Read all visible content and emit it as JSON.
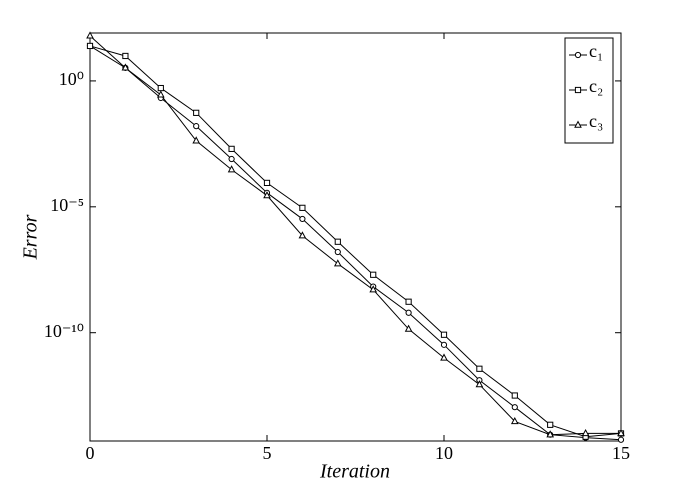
{
  "chart_data": {
    "type": "line",
    "x_label": "Iteration",
    "y_label": "Error",
    "log_y": true,
    "x": [
      0,
      1,
      2,
      3,
      4,
      5,
      6,
      7,
      8,
      9,
      10,
      11,
      12,
      13,
      14,
      15
    ],
    "xlim": [
      0,
      15
    ],
    "xticks": [
      0,
      5,
      10,
      15
    ],
    "ylim": [
      5e-15,
      80
    ],
    "yticks": [
      {
        "value": 1e-10,
        "label": "10⁻¹⁰"
      },
      {
        "value": 1e-05,
        "label": "10⁻⁵"
      },
      {
        "value": 1,
        "label": "10⁰"
      }
    ],
    "legend": "upper right",
    "series": [
      {
        "name": "c₁",
        "color": "#000000",
        "marker": "circle",
        "values": [
          24.5,
          3.3,
          0.21,
          0.016,
          0.00079,
          3.6e-05,
          3.3e-06,
          1.6e-07,
          6.8e-09,
          6.2e-10,
          3.3e-11,
          1.3e-12,
          1.1e-13,
          8.9e-15,
          6.8e-15,
          5.6e-15
        ]
      },
      {
        "name": "c₂",
        "color": "#000000",
        "marker": "square",
        "values": [
          24.5,
          9.8,
          0.52,
          0.054,
          0.002,
          8.9e-05,
          9.1e-06,
          4.1e-07,
          2e-08,
          1.7e-09,
          8.3e-11,
          3.7e-12,
          3.2e-13,
          2.2e-14,
          7.4e-15,
          1e-14
        ]
      },
      {
        "name": "c₃",
        "color": "#000000",
        "marker": "triangle",
        "values": [
          61.7,
          3.3,
          0.28,
          0.0042,
          0.0003,
          2.8e-05,
          7.1e-07,
          5.5e-08,
          5.1e-09,
          1.4e-10,
          1e-11,
          8.7e-13,
          3e-14,
          8.9e-15,
          1e-14,
          1e-14
        ]
      }
    ]
  }
}
